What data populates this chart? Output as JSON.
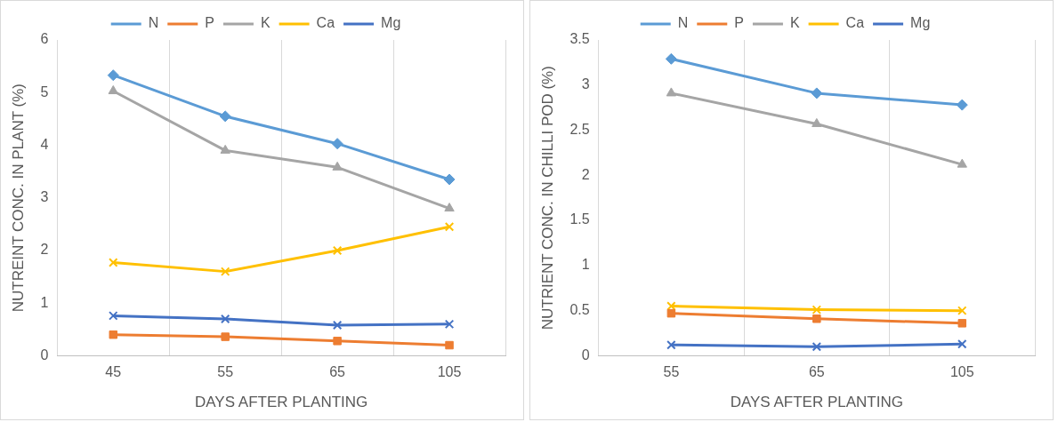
{
  "chart_data": [
    {
      "type": "line",
      "xlabel": "DAYS AFTER PLANTING",
      "ylabel": "NUTREINT CONC. IN PLANT (%)",
      "categories": [
        "45",
        "55",
        "65",
        "105"
      ],
      "ylim": [
        0,
        6
      ],
      "yticks": [
        0,
        1,
        2,
        3,
        4,
        5,
        6
      ],
      "grid": "x",
      "legend": "top",
      "series": [
        {
          "name": "N",
          "color": "#5b9bd5",
          "marker": "diamond",
          "values": [
            5.33,
            4.55,
            4.03,
            3.35
          ]
        },
        {
          "name": "P",
          "color": "#ed7d31",
          "marker": "square",
          "values": [
            0.4,
            0.36,
            0.28,
            0.2
          ]
        },
        {
          "name": "K",
          "color": "#a5a5a5",
          "marker": "triangle",
          "values": [
            5.03,
            3.9,
            3.58,
            2.8
          ]
        },
        {
          "name": "Ca",
          "color": "#ffc000",
          "marker": "cross",
          "values": [
            1.77,
            1.6,
            2.0,
            2.45
          ]
        },
        {
          "name": "Mg",
          "color": "#4472c4",
          "marker": "cross",
          "values": [
            0.76,
            0.7,
            0.58,
            0.6
          ]
        }
      ]
    },
    {
      "type": "line",
      "xlabel": "DAYS AFTER PLANTING",
      "ylabel": "NUTRIENT CONC. IN CHILLI POD (%)",
      "categories": [
        "55",
        "65",
        "105"
      ],
      "ylim": [
        0,
        3.5
      ],
      "yticks": [
        0,
        0.5,
        1,
        1.5,
        2,
        2.5,
        3,
        3.5
      ],
      "grid": "x",
      "legend": "top",
      "series": [
        {
          "name": "N",
          "color": "#5b9bd5",
          "marker": "diamond",
          "values": [
            3.29,
            2.91,
            2.78
          ]
        },
        {
          "name": "P",
          "color": "#ed7d31",
          "marker": "square",
          "values": [
            0.47,
            0.41,
            0.36
          ]
        },
        {
          "name": "K",
          "color": "#a5a5a5",
          "marker": "triangle",
          "values": [
            2.91,
            2.57,
            2.12
          ]
        },
        {
          "name": "Ca",
          "color": "#ffc000",
          "marker": "cross",
          "values": [
            0.55,
            0.51,
            0.5
          ]
        },
        {
          "name": "Mg",
          "color": "#4472c4",
          "marker": "cross",
          "values": [
            0.12,
            0.1,
            0.13
          ]
        }
      ]
    }
  ]
}
